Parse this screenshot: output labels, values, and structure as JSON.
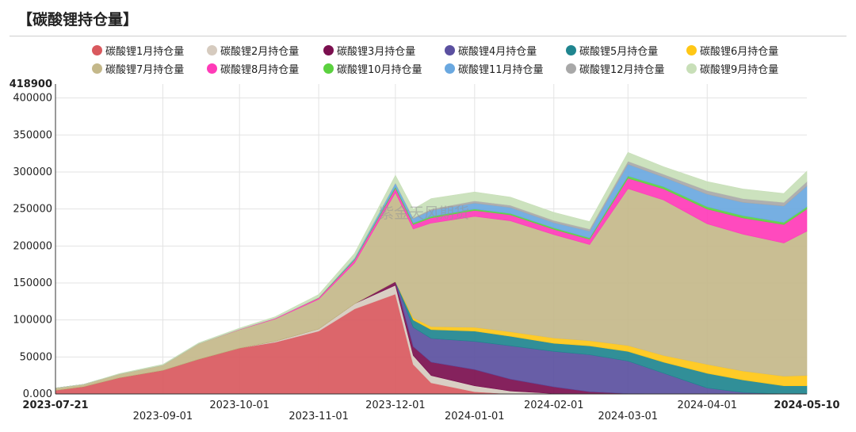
{
  "title": "【碳酸锂持仓量】",
  "watermark": "紫金天风期货",
  "chart_data": {
    "type": "area",
    "stacked": true,
    "ylim": [
      0,
      418900
    ],
    "y_top_label": "418900",
    "y_ticks": [
      0,
      50000,
      100000,
      150000,
      200000,
      250000,
      300000,
      350000,
      400000
    ],
    "y_tick_labels": [
      "0.000",
      "50000",
      "100000",
      "150000",
      "200000",
      "250000",
      "300000",
      "350000",
      "400000"
    ],
    "x_start": "2023-07-21",
    "x_end": "2024-05-10",
    "x_ticks": [
      "2023-07-21",
      "2023-09-01",
      "2023-10-01",
      "2023-11-01",
      "2023-12-01",
      "2024-01-01",
      "2024-02-01",
      "2024-03-01",
      "2024-04-01",
      "2024-05-10"
    ],
    "x_tick_labels_bold": [
      "2023-07-21",
      "2024-05-10"
    ],
    "grid": true,
    "legend_position": "top",
    "x": [
      "2023-07-21",
      "2023-08-01",
      "2023-08-15",
      "2023-09-01",
      "2023-09-15",
      "2023-10-01",
      "2023-10-15",
      "2023-11-01",
      "2023-11-15",
      "2023-12-01",
      "2023-12-08",
      "2023-12-15",
      "2024-01-01",
      "2024-01-15",
      "2024-02-01",
      "2024-02-15",
      "2024-03-01",
      "2024-03-15",
      "2024-04-01",
      "2024-04-15",
      "2024-05-01",
      "2024-05-10"
    ],
    "series": [
      {
        "name": "碳酸锂1月持仓量",
        "color": "#d9595e",
        "values": [
          5000,
          10000,
          22000,
          32000,
          47000,
          62000,
          70000,
          85000,
          115000,
          135000,
          40000,
          15000,
          3000,
          0,
          0,
          0,
          0,
          0,
          0,
          0,
          0,
          0
        ]
      },
      {
        "name": "碳酸锂2月持仓量",
        "color": "#d6cbbf",
        "values": [
          0,
          0,
          0,
          0,
          0,
          0,
          1500,
          3000,
          7000,
          12000,
          12000,
          10000,
          8000,
          4000,
          500,
          0,
          0,
          0,
          0,
          0,
          0,
          0
        ]
      },
      {
        "name": "碳酸锂3月持仓量",
        "color": "#7b0f4f",
        "values": [
          0,
          0,
          0,
          0,
          0,
          0,
          0,
          0,
          0,
          5000,
          12000,
          18000,
          22000,
          16000,
          9000,
          3000,
          500,
          0,
          0,
          0,
          0,
          0
        ]
      },
      {
        "name": "碳酸锂4月持仓量",
        "color": "#5b50a0",
        "values": [
          0,
          0,
          0,
          0,
          0,
          0,
          0,
          0,
          0,
          0,
          26000,
          32000,
          38000,
          45000,
          48000,
          50000,
          44000,
          28000,
          8000,
          2000,
          0,
          0
        ]
      },
      {
        "name": "碳酸锂5月持仓量",
        "color": "#1f858f",
        "values": [
          0,
          0,
          0,
          0,
          0,
          0,
          0,
          0,
          0,
          0,
          10000,
          12000,
          14000,
          13000,
          11000,
          12000,
          13000,
          15000,
          20000,
          17000,
          11000,
          11000
        ]
      },
      {
        "name": "碳酸锂6月持仓量",
        "color": "#ffc716",
        "values": [
          0,
          0,
          0,
          0,
          0,
          0,
          0,
          0,
          0,
          0,
          3000,
          4000,
          5000,
          6000,
          7000,
          7000,
          8000,
          9000,
          12000,
          12000,
          13000,
          14000
        ]
      },
      {
        "name": "碳酸锂7月持仓量",
        "color": "#c4b88a",
        "values": [
          3000,
          3000,
          5000,
          7000,
          21000,
          25000,
          30000,
          40000,
          55000,
          120000,
          120000,
          140000,
          150000,
          150000,
          140000,
          130000,
          212000,
          210000,
          190000,
          185000,
          180000,
          195000
        ]
      },
      {
        "name": "碳酸锂8月持仓量",
        "color": "#ff3bb8",
        "values": [
          0,
          0,
          0,
          0,
          0,
          500,
          1000,
          2000,
          4000,
          6000,
          6000,
          7000,
          8000,
          8000,
          7000,
          7000,
          14000,
          15000,
          20000,
          22000,
          25000,
          30000
        ]
      },
      {
        "name": "碳酸锂10月持仓量",
        "color": "#5bd13f",
        "values": [
          0,
          0,
          0,
          0,
          0,
          0,
          0,
          500,
          1000,
          2000,
          2000,
          2000,
          2000,
          2000,
          2000,
          2000,
          3000,
          3000,
          3000,
          3000,
          3000,
          3000
        ]
      },
      {
        "name": "碳酸锂11月持仓量",
        "color": "#6aa8e0",
        "values": [
          0,
          0,
          0,
          0,
          0,
          0,
          0,
          0,
          2000,
          5000,
          6000,
          8000,
          8000,
          8000,
          7000,
          9000,
          16000,
          13000,
          17000,
          18000,
          22000,
          28000
        ]
      },
      {
        "name": "碳酸锂12月持仓量",
        "color": "#a8a8a8",
        "values": [
          0,
          0,
          0,
          0,
          0,
          0,
          0,
          0,
          0,
          500,
          1000,
          2000,
          3000,
          3000,
          3000,
          3000,
          4000,
          4000,
          5000,
          5000,
          5000,
          6000
        ]
      },
      {
        "name": "碳酸锂9月持仓量",
        "color": "#c8dfb8",
        "values": [
          0,
          0,
          500,
          1000,
          1000,
          1500,
          2000,
          4000,
          6000,
          10000,
          12000,
          14000,
          12000,
          11000,
          11000,
          10000,
          12000,
          10000,
          12000,
          13000,
          12000,
          14000
        ]
      }
    ]
  }
}
